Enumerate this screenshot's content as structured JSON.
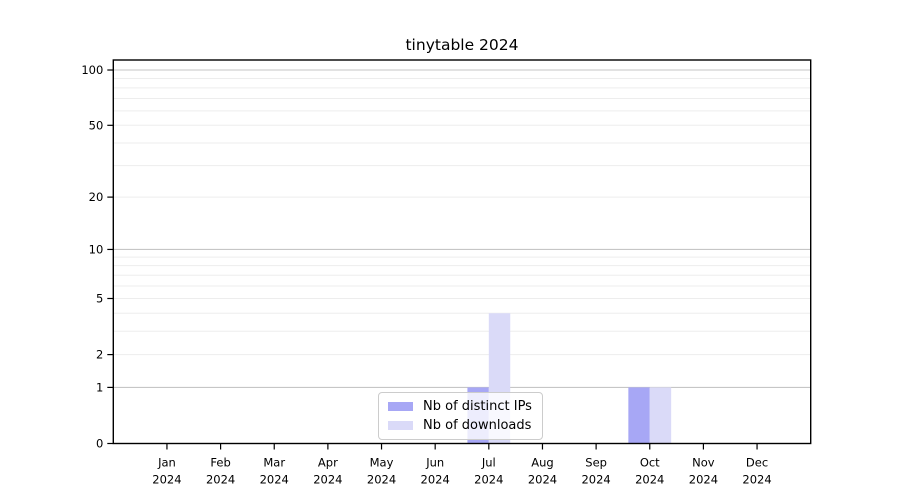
{
  "title": "tinytable 2024",
  "chart_data": {
    "type": "bar",
    "title": "tinytable 2024",
    "x": [
      "Jan",
      "Feb",
      "Mar",
      "Apr",
      "May",
      "Jun",
      "Jul",
      "Aug",
      "Sep",
      "Oct",
      "Nov",
      "Dec"
    ],
    "x_sublabel": "2024",
    "series": [
      {
        "name": "Nb of distinct IPs",
        "color": "#a7a7f5",
        "values": [
          0,
          0,
          0,
          0,
          0,
          0,
          1,
          0,
          0,
          1,
          0,
          0
        ]
      },
      {
        "name": "Nb of downloads",
        "color": "#dadaf8",
        "values": [
          0,
          0,
          0,
          0,
          0,
          0,
          4,
          0,
          0,
          1,
          0,
          0
        ]
      }
    ],
    "y_scale": "log1p",
    "ylim": [
      0,
      113.3
    ],
    "y_ticks": [
      0,
      1,
      2,
      5,
      10,
      20,
      50,
      100
    ],
    "grid_minor_values": [
      2,
      3,
      4,
      5,
      6,
      7,
      8,
      9,
      20,
      30,
      40,
      50,
      60,
      70,
      80,
      90
    ],
    "grid_major_values": [
      1,
      10,
      100
    ],
    "grid": true,
    "legend_position": "lower center",
    "colors": {
      "grid_minor": "#ededed",
      "grid_major": "#c6c6c6",
      "axis": "#000000",
      "text": "#000000",
      "legend_border": "#cccccc",
      "background": "#ffffff"
    }
  }
}
